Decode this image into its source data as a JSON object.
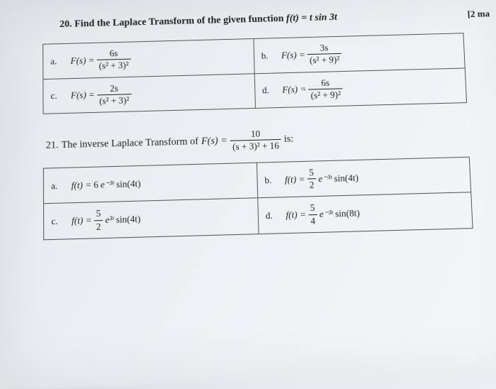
{
  "q20": {
    "number": "20.",
    "prompt_prefix": "Find the Laplace Transform of the given function ",
    "given_fn_lhs": "f(t)",
    "given_fn_rhs": "t sin 3t",
    "marks": "[2 ma",
    "options": [
      {
        "label": "a.",
        "lhs": "F(s) =",
        "num": "6s",
        "den": "(s² + 3)²"
      },
      {
        "label": "b.",
        "lhs": "F(s) =",
        "num": "3s",
        "den": "(s² + 9)²"
      },
      {
        "label": "c.",
        "lhs": "F(s) =",
        "num": "2s",
        "den": "(s² + 3)²"
      },
      {
        "label": "d.",
        "lhs": "F(s) =",
        "num": "6s",
        "den": "(s² + 9)²"
      }
    ]
  },
  "q21": {
    "number": "21.",
    "prompt_prefix": "The inverse Laplace Transform of ",
    "F_lhs": "F(s) =",
    "F_num": "10",
    "F_den": "(s + 3)² + 16",
    "prompt_suffix": " is:",
    "options": [
      {
        "label": "a.",
        "lhs": "f(t) =",
        "coef": "6",
        "exp": "e⁻³ᵗ",
        "trig": "sin(4t)",
        "frac": false
      },
      {
        "label": "b.",
        "lhs": "f(t) =",
        "num": "5",
        "den": "2",
        "exp": "e⁻³ᵗ",
        "trig": "sin(4t)",
        "frac": true
      },
      {
        "label": "c.",
        "lhs": "f(t) =",
        "num": "5",
        "den": "2",
        "exp": "e³ᵗ",
        "trig": "sin(4t)",
        "frac": true
      },
      {
        "label": "d.",
        "lhs": "f(t) =",
        "num": "5",
        "den": "4",
        "exp": "e⁻³ᵗ",
        "trig": "sin(8t)",
        "frac": true
      }
    ]
  },
  "colors": {
    "text": "#222222",
    "border": "#555555",
    "bg_light": "#f5f7f8",
    "bg_dark": "#e6e9ec"
  }
}
